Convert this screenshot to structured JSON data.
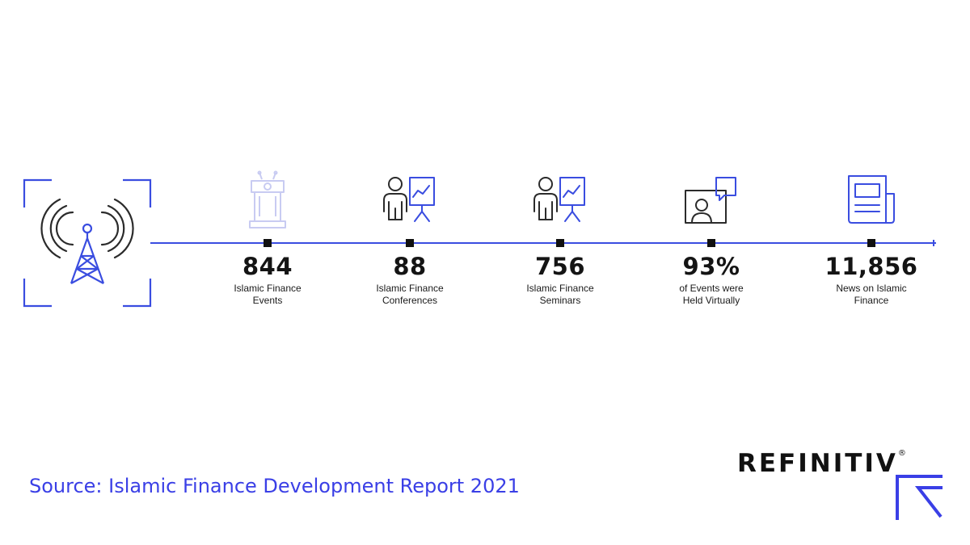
{
  "stats": [
    {
      "icon": "podium-icon",
      "value": "844",
      "label_line1": "Islamic Finance",
      "label_line2": "Events"
    },
    {
      "icon": "presenter-icon",
      "value": "88",
      "label_line1": "Islamic Finance",
      "label_line2": "Conferences"
    },
    {
      "icon": "presenter-icon",
      "value": "756",
      "label_line1": "Islamic Finance",
      "label_line2": "Seminars"
    },
    {
      "icon": "video-call-icon",
      "value": "93%",
      "label_line1": "of Events were",
      "label_line2": "Held Virtually"
    },
    {
      "icon": "newspaper-icon",
      "value": "11,856",
      "label_line1": "News on Islamic",
      "label_line2": "Finance"
    }
  ],
  "hero_icon": "broadcast-tower-icon",
  "source_text": "Source: Islamic Finance Development Report 2021",
  "brand": {
    "name": "REFINITIV",
    "registered": "®",
    "logo_icon": "refinitiv-r-icon"
  },
  "colors": {
    "accent": "#3a4de0",
    "source_text": "#3a3fe6",
    "icon_stroke": "#2b2b2b",
    "podium_faded": "#c8cbf2",
    "marker": "#111111"
  }
}
